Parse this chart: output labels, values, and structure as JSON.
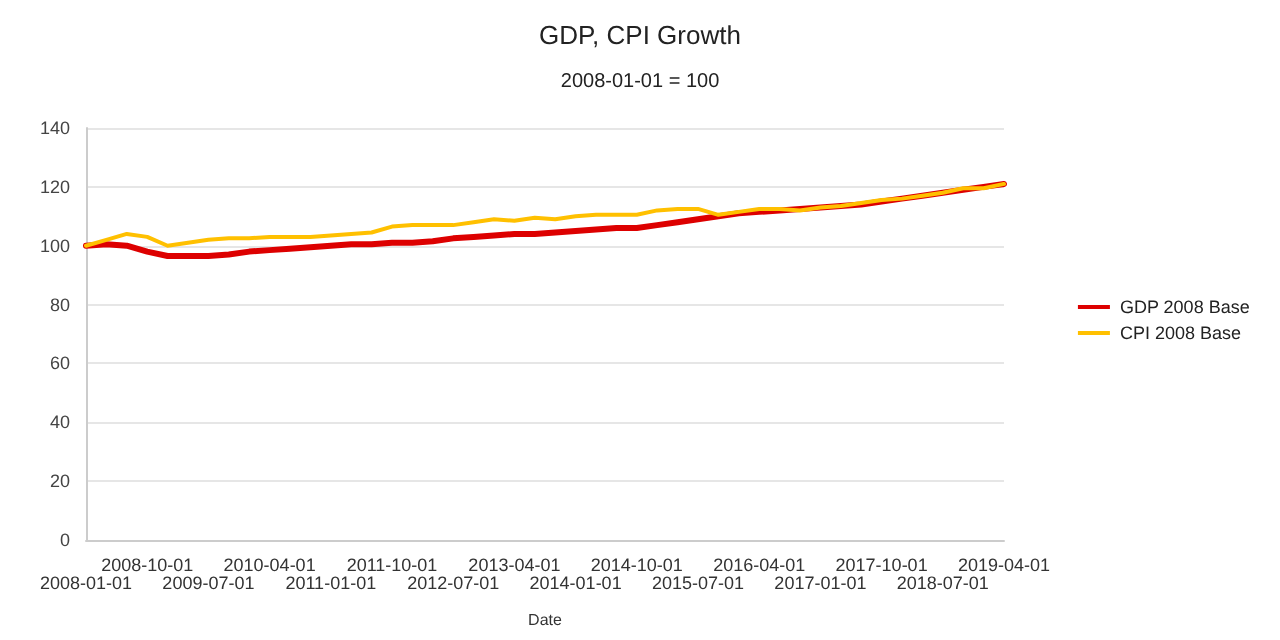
{
  "chart_data": {
    "type": "line",
    "title": "GDP, CPI Growth",
    "subtitle": "2008-01-01 = 100",
    "xlabel": "Date",
    "categories": [
      "2008-01-01",
      null,
      null,
      "2008-10-01",
      null,
      null,
      "2009-07-01",
      null,
      null,
      "2010-04-01",
      null,
      null,
      "2011-01-01",
      null,
      null,
      "2011-10-01",
      null,
      null,
      "2012-07-01",
      null,
      null,
      "2013-04-01",
      null,
      null,
      "2014-01-01",
      null,
      null,
      "2014-10-01",
      null,
      null,
      "2015-07-01",
      null,
      null,
      "2016-04-01",
      null,
      null,
      "2017-01-01",
      null,
      null,
      "2017-10-01",
      null,
      null,
      "2018-07-01",
      null,
      null,
      "2019-04-01"
    ],
    "series": [
      {
        "name": "GDP 2008 Base",
        "color": "#dd0000",
        "values": [
          100,
          100.5,
          100,
          98,
          96.5,
          96.5,
          96.5,
          97,
          98,
          98.5,
          99,
          99.5,
          100,
          100.5,
          100.5,
          101,
          101,
          101.5,
          102.5,
          103,
          103.5,
          104,
          104,
          104.5,
          105,
          105.5,
          106,
          106,
          107,
          108,
          109,
          110,
          111,
          111.5,
          112,
          112.5,
          113,
          113.5,
          114,
          115,
          116,
          117,
          118,
          119,
          120,
          121
        ]
      },
      {
        "name": "CPI 2008 Base",
        "color": "#ffc000",
        "values": [
          100,
          102,
          104,
          103,
          100,
          101,
          102,
          102.5,
          102.5,
          103,
          103,
          103,
          103.5,
          104,
          104.5,
          106.5,
          107,
          107,
          107,
          108,
          109,
          108.5,
          109.5,
          109,
          110,
          110.5,
          110.5,
          110.5,
          112,
          112.5,
          112.5,
          110.5,
          111.5,
          112.5,
          112.5,
          112,
          113,
          113.5,
          114.5,
          115.5,
          116,
          117,
          118,
          119.5,
          119.5,
          121
        ]
      }
    ],
    "ylim": [
      0,
      140
    ],
    "yticks": [
      0,
      20,
      40,
      60,
      80,
      100,
      120,
      140
    ],
    "grid": "y",
    "legend": "right",
    "marker": "none",
    "line_style": "solid"
  }
}
